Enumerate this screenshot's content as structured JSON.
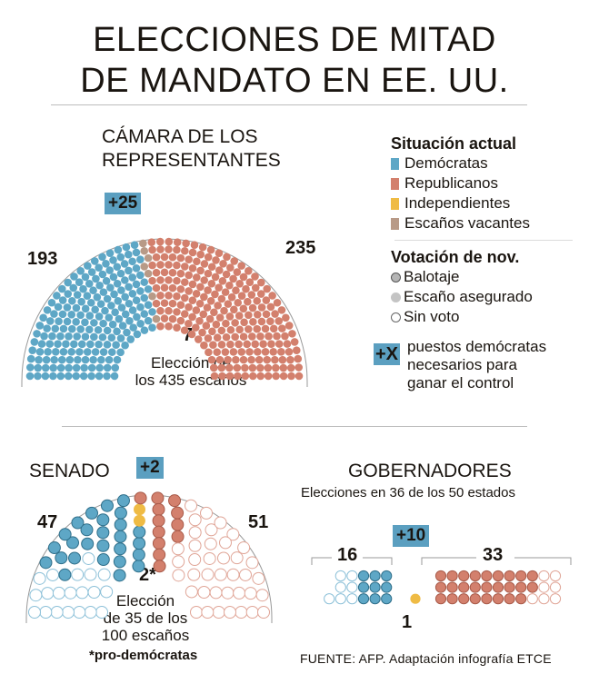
{
  "title": {
    "line1": "ELECCIONES DE MITAD",
    "line2": "DE MANDATO EN EE. UU."
  },
  "colors": {
    "democrats": "#5ea7c6",
    "republicans": "#d3806d",
    "independents": "#efbb44",
    "vacant": "#b89a87",
    "badge": "#5b9fc0"
  },
  "house": {
    "title_line1": "CÁMARA DE LOS",
    "title_line2": "REPRESENTANTES",
    "badge": "+25",
    "dem_count": "193",
    "rep_count": "235",
    "vacant_count": "7",
    "caption_line1": "Elección de",
    "caption_line2": "los 435 escaños"
  },
  "legend": {
    "current_title": "Situación actual",
    "items": [
      {
        "label": "Demócratas",
        "color": "#5ea7c6"
      },
      {
        "label": "Republicanos",
        "color": "#d3806d"
      },
      {
        "label": "Independientes",
        "color": "#efbb44"
      },
      {
        "label": "Escaños vacantes",
        "color": "#b89a87"
      }
    ],
    "vote_title": "Votación de nov.",
    "vote_items": [
      {
        "label": "Balotaje",
        "style": "outlined-filled"
      },
      {
        "label": "Escaño asegurado",
        "style": "filled"
      },
      {
        "label": "Sin voto",
        "style": "empty"
      }
    ],
    "badge_label": "+X",
    "badge_desc_line1": "puestos demócratas",
    "badge_desc_line2": "necesarios para",
    "badge_desc_line3": "ganar el control"
  },
  "senate": {
    "title": "SENADO",
    "badge": "+2",
    "dem_count": "47",
    "rep_count": "51",
    "ind_count": "2*",
    "caption_line1": "Elección",
    "caption_line2": "de 35 de los",
    "caption_line3": "100 escaños",
    "footnote": "*pro-demócratas"
  },
  "governors": {
    "title": "GOBERNADORES",
    "subtitle": "Elecciones en 36 de los 50 estados",
    "badge": "+10",
    "dem_count": "16",
    "rep_count": "33",
    "ind_count": "1"
  },
  "source": "FUENTE: AFP. Adaptación infografía ETCE",
  "chart_data": [
    {
      "type": "hemicycle",
      "title": "Cámara de los Representantes",
      "total_seats": 435,
      "series": [
        {
          "name": "Demócratas",
          "value": 193,
          "runoff": 7
        },
        {
          "name": "Republicanos",
          "value": 235
        },
        {
          "name": "Escaños vacantes",
          "value": 7
        }
      ],
      "seats_needed_dem": 25
    },
    {
      "type": "hemicycle",
      "title": "Senado",
      "total_seats": 100,
      "seats_up_for_election": 35,
      "series": [
        {
          "name": "Demócratas",
          "value": 47,
          "up_for_election": 24,
          "not_voting": 23
        },
        {
          "name": "Republicanos",
          "value": 51,
          "up_for_election": 9,
          "not_voting": 42
        },
        {
          "name": "Independientes (pro-demócratas)",
          "value": 2,
          "up_for_election": 2
        }
      ],
      "seats_needed_dem": 2
    },
    {
      "type": "dot-grid",
      "title": "Gobernadores",
      "total": 50,
      "elections": 36,
      "series": [
        {
          "name": "Demócratas",
          "value": 16,
          "up_for_election": 9,
          "not_voting": 7
        },
        {
          "name": "Republicanos",
          "value": 33,
          "up_for_election": 26,
          "not_voting": 7
        },
        {
          "name": "Independientes",
          "value": 1,
          "up_for_election": 1
        }
      ],
      "seats_needed_dem": 10
    }
  ]
}
